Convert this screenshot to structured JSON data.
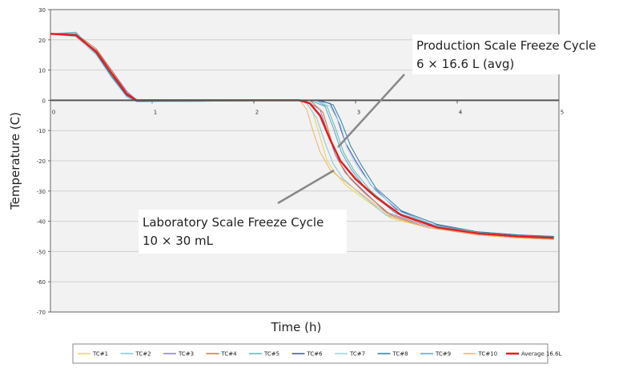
{
  "chart_data": {
    "type": "line",
    "title": "",
    "xlabel": "Time (h)",
    "ylabel": "Temperature (C)",
    "xlim": [
      0,
      5
    ],
    "ylim": [
      -70,
      30
    ],
    "x_ticks": [
      "0",
      "1",
      "2",
      "3",
      "4",
      "5"
    ],
    "y_ticks": [
      "30",
      "20",
      "10",
      "0",
      "-10",
      "-20",
      "-30",
      "-40",
      "-50",
      "-60",
      "-70"
    ],
    "grid": "horizontal",
    "legend_position": "bottom",
    "plot_background": "#f2f2f2",
    "annotations": [
      {
        "line1": "Production Scale Freeze Cycle",
        "line2": "6 × 16.6 L (avg)"
      },
      {
        "line1": "Laboratory Scale Freeze Cycle",
        "line2": "10 × 30 mL"
      }
    ],
    "series": [
      {
        "name": "TC#1",
        "color": "#e8d44d",
        "points": [
          [
            0,
            22
          ],
          [
            0.25,
            21.5
          ],
          [
            0.45,
            16
          ],
          [
            0.6,
            9
          ],
          [
            0.75,
            2
          ],
          [
            0.85,
            0
          ],
          [
            2.5,
            0
          ],
          [
            2.58,
            -4
          ],
          [
            2.65,
            -12
          ],
          [
            2.72,
            -20
          ],
          [
            2.8,
            -24
          ],
          [
            2.9,
            -28
          ],
          [
            3.1,
            -33
          ],
          [
            3.35,
            -39
          ],
          [
            3.7,
            -42
          ],
          [
            4.2,
            -44
          ],
          [
            4.6,
            -45
          ],
          [
            4.95,
            -45.5
          ]
        ]
      },
      {
        "name": "TC#2",
        "color": "#7fc7e0",
        "points": [
          [
            0,
            22
          ],
          [
            0.25,
            22
          ],
          [
            0.45,
            15
          ],
          [
            0.6,
            8
          ],
          [
            0.75,
            1.5
          ],
          [
            0.85,
            -0.5
          ],
          [
            2.5,
            0
          ],
          [
            2.62,
            -6
          ],
          [
            2.7,
            -14
          ],
          [
            2.78,
            -21
          ],
          [
            2.88,
            -26
          ],
          [
            3.05,
            -31
          ],
          [
            3.3,
            -38
          ],
          [
            3.7,
            -42
          ],
          [
            4.2,
            -44
          ],
          [
            4.6,
            -45
          ],
          [
            4.95,
            -45
          ]
        ]
      },
      {
        "name": "TC#3",
        "color": "#8a7cc4",
        "points": [
          [
            0,
            22
          ],
          [
            0.25,
            21.5
          ],
          [
            0.45,
            16.5
          ],
          [
            0.6,
            10
          ],
          [
            0.75,
            3
          ],
          [
            0.85,
            0
          ],
          [
            2.5,
            0
          ],
          [
            2.65,
            -3
          ],
          [
            2.72,
            -10
          ],
          [
            2.8,
            -18
          ],
          [
            2.9,
            -24
          ],
          [
            3.05,
            -29
          ],
          [
            3.3,
            -37
          ],
          [
            3.7,
            -41.5
          ],
          [
            4.2,
            -44
          ],
          [
            4.6,
            -45
          ],
          [
            4.95,
            -45
          ]
        ]
      },
      {
        "name": "TC#4",
        "color": "#d4703c",
        "points": [
          [
            0,
            22
          ],
          [
            0.25,
            22
          ],
          [
            0.45,
            17
          ],
          [
            0.6,
            10
          ],
          [
            0.75,
            2.5
          ],
          [
            0.85,
            0
          ],
          [
            2.55,
            0
          ],
          [
            2.68,
            -4
          ],
          [
            2.76,
            -13
          ],
          [
            2.85,
            -21
          ],
          [
            2.95,
            -26
          ],
          [
            3.1,
            -31
          ],
          [
            3.35,
            -38
          ],
          [
            3.7,
            -42
          ],
          [
            4.2,
            -44.5
          ],
          [
            4.6,
            -45.5
          ],
          [
            4.95,
            -46
          ]
        ]
      },
      {
        "name": "TC#5",
        "color": "#5fb8b0",
        "points": [
          [
            0,
            22
          ],
          [
            0.25,
            22.5
          ],
          [
            0.45,
            15.5
          ],
          [
            0.6,
            8.5
          ],
          [
            0.75,
            1
          ],
          [
            0.85,
            -0.5
          ],
          [
            2.6,
            0
          ],
          [
            2.72,
            -2
          ],
          [
            2.8,
            -9
          ],
          [
            2.88,
            -17
          ],
          [
            2.98,
            -23
          ],
          [
            3.15,
            -30
          ],
          [
            3.4,
            -37
          ],
          [
            3.75,
            -41
          ],
          [
            4.2,
            -43.5
          ],
          [
            4.6,
            -44.5
          ],
          [
            4.95,
            -45
          ]
        ]
      },
      {
        "name": "TC#6",
        "color": "#3f4fa8",
        "points": [
          [
            0,
            22
          ],
          [
            0.25,
            22
          ],
          [
            0.45,
            16
          ],
          [
            0.6,
            9
          ],
          [
            0.75,
            2
          ],
          [
            0.85,
            0
          ],
          [
            2.6,
            0
          ],
          [
            2.75,
            -1
          ],
          [
            2.82,
            -6
          ],
          [
            2.9,
            -14
          ],
          [
            3.0,
            -20
          ],
          [
            3.15,
            -28
          ],
          [
            3.4,
            -36
          ],
          [
            3.75,
            -41
          ],
          [
            4.2,
            -44
          ],
          [
            4.6,
            -45
          ],
          [
            4.95,
            -45.5
          ]
        ]
      },
      {
        "name": "TC#7",
        "color": "#9fd2ea",
        "points": [
          [
            0,
            22
          ],
          [
            0.25,
            21
          ],
          [
            0.45,
            15
          ],
          [
            0.6,
            7.5
          ],
          [
            0.75,
            1
          ],
          [
            0.85,
            -0.5
          ],
          [
            2.6,
            0
          ],
          [
            2.75,
            -2
          ],
          [
            2.85,
            -8
          ],
          [
            2.92,
            -16
          ],
          [
            3.02,
            -22
          ],
          [
            3.2,
            -30
          ],
          [
            3.45,
            -37
          ],
          [
            3.8,
            -41.5
          ],
          [
            4.2,
            -44
          ],
          [
            4.6,
            -45
          ],
          [
            4.95,
            -45
          ]
        ]
      },
      {
        "name": "TC#8",
        "color": "#2c7fae",
        "points": [
          [
            0,
            22
          ],
          [
            0.25,
            22
          ],
          [
            0.45,
            15.5
          ],
          [
            0.6,
            8
          ],
          [
            0.75,
            1.5
          ],
          [
            0.85,
            -0.3
          ],
          [
            2.65,
            0
          ],
          [
            2.78,
            -1.5
          ],
          [
            2.86,
            -7
          ],
          [
            2.95,
            -15
          ],
          [
            3.05,
            -21
          ],
          [
            3.2,
            -29
          ],
          [
            3.45,
            -36.5
          ],
          [
            3.8,
            -41
          ],
          [
            4.2,
            -43.5
          ],
          [
            4.6,
            -44.5
          ],
          [
            4.95,
            -45
          ]
        ]
      },
      {
        "name": "TC#9",
        "color": "#57a6cf",
        "points": [
          [
            0,
            22
          ],
          [
            0.25,
            22
          ],
          [
            0.45,
            16
          ],
          [
            0.6,
            9
          ],
          [
            0.75,
            2
          ],
          [
            0.85,
            0
          ],
          [
            2.55,
            0
          ],
          [
            2.7,
            -2
          ],
          [
            2.78,
            -9
          ],
          [
            2.86,
            -17
          ],
          [
            2.96,
            -23
          ],
          [
            3.12,
            -30
          ],
          [
            3.4,
            -37.5
          ],
          [
            3.75,
            -41.5
          ],
          [
            4.2,
            -44
          ],
          [
            4.6,
            -45
          ],
          [
            4.95,
            -45.5
          ]
        ]
      },
      {
        "name": "TC#10",
        "color": "#f0b070",
        "points": [
          [
            0,
            22
          ],
          [
            0.25,
            21.5
          ],
          [
            0.45,
            16
          ],
          [
            0.6,
            9
          ],
          [
            0.75,
            2
          ],
          [
            0.85,
            0
          ],
          [
            2.45,
            0
          ],
          [
            2.52,
            -3
          ],
          [
            2.58,
            -10
          ],
          [
            2.65,
            -17
          ],
          [
            2.75,
            -23
          ],
          [
            2.9,
            -27
          ],
          [
            3.1,
            -32
          ],
          [
            3.35,
            -38.5
          ],
          [
            3.7,
            -42
          ],
          [
            4.2,
            -44.5
          ],
          [
            4.6,
            -45.5
          ],
          [
            4.95,
            -46
          ]
        ]
      },
      {
        "name": "Average 16.6L",
        "color": "#e02020",
        "width": 2.5,
        "points": [
          [
            0,
            22
          ],
          [
            0.25,
            21.5
          ],
          [
            0.45,
            16
          ],
          [
            0.6,
            9
          ],
          [
            0.75,
            2
          ],
          [
            0.85,
            0
          ],
          [
            2.45,
            0
          ],
          [
            2.55,
            -1
          ],
          [
            2.65,
            -5
          ],
          [
            2.75,
            -13
          ],
          [
            2.85,
            -20
          ],
          [
            3.0,
            -26
          ],
          [
            3.2,
            -32
          ],
          [
            3.45,
            -38
          ],
          [
            3.8,
            -42
          ],
          [
            4.2,
            -44
          ],
          [
            4.6,
            -45
          ],
          [
            4.95,
            -45.5
          ]
        ]
      }
    ]
  }
}
